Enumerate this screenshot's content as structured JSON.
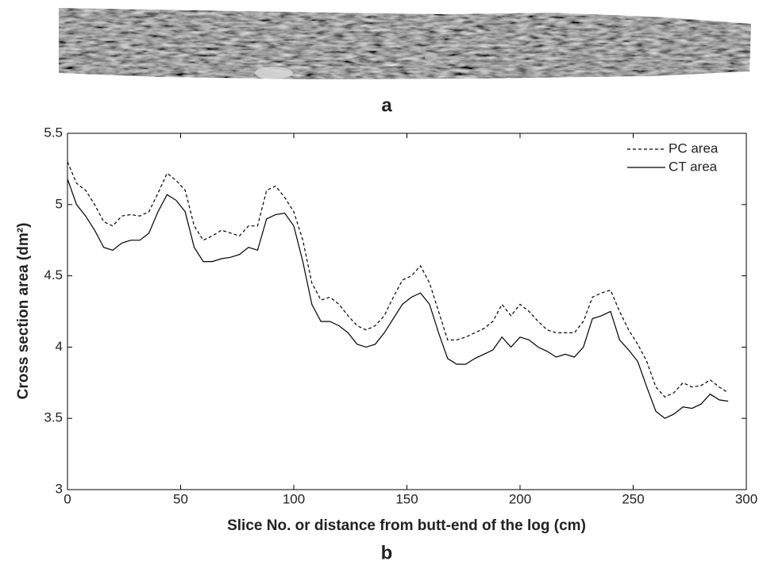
{
  "chart_data": {
    "type": "line",
    "panel_a_label": "a",
    "panel_b_label": "b",
    "xlabel": "Slice No. or distance from butt-end of the log (cm)",
    "ylabel": "Cross section area (dm²)",
    "x": [
      0,
      4,
      8,
      12,
      16,
      20,
      24,
      28,
      32,
      36,
      40,
      44,
      48,
      52,
      56,
      60,
      64,
      68,
      72,
      76,
      80,
      84,
      88,
      92,
      96,
      100,
      104,
      108,
      112,
      116,
      120,
      124,
      128,
      132,
      136,
      140,
      144,
      148,
      152,
      156,
      160,
      164,
      168,
      172,
      176,
      180,
      184,
      188,
      192,
      196,
      200,
      204,
      208,
      212,
      216,
      220,
      224,
      228,
      232,
      236,
      240,
      244,
      248,
      252,
      256,
      260,
      264,
      268,
      272,
      276,
      280,
      284,
      288,
      292
    ],
    "series": [
      {
        "name": "PC area",
        "color": "#000000",
        "dash": "4,3",
        "values": [
          5.3,
          5.15,
          5.1,
          5.0,
          4.88,
          4.85,
          4.92,
          4.93,
          4.92,
          4.95,
          5.08,
          5.22,
          5.17,
          5.1,
          4.85,
          4.75,
          4.78,
          4.82,
          4.8,
          4.78,
          4.85,
          4.85,
          5.1,
          5.13,
          5.05,
          4.95,
          4.75,
          4.45,
          4.33,
          4.35,
          4.3,
          4.22,
          4.15,
          4.12,
          4.15,
          4.22,
          4.35,
          4.47,
          4.5,
          4.57,
          4.45,
          4.25,
          4.05,
          4.05,
          4.07,
          4.1,
          4.13,
          4.18,
          4.3,
          4.22,
          4.3,
          4.25,
          4.18,
          4.12,
          4.1,
          4.1,
          4.1,
          4.18,
          4.35,
          4.38,
          4.4,
          4.25,
          4.12,
          4.02,
          3.9,
          3.72,
          3.65,
          3.68,
          3.75,
          3.72,
          3.73,
          3.77,
          3.72,
          3.68
        ]
      },
      {
        "name": "CT area",
        "color": "#000000",
        "dash": "none",
        "values": [
          5.18,
          5.0,
          4.92,
          4.82,
          4.7,
          4.68,
          4.73,
          4.75,
          4.75,
          4.8,
          4.95,
          5.07,
          5.03,
          4.95,
          4.7,
          4.6,
          4.6,
          4.62,
          4.63,
          4.65,
          4.7,
          4.68,
          4.9,
          4.93,
          4.94,
          4.85,
          4.6,
          4.3,
          4.18,
          4.18,
          4.15,
          4.1,
          4.02,
          4.0,
          4.02,
          4.1,
          4.2,
          4.3,
          4.35,
          4.38,
          4.3,
          4.1,
          3.92,
          3.88,
          3.88,
          3.92,
          3.95,
          3.98,
          4.07,
          4.0,
          4.07,
          4.05,
          4.0,
          3.97,
          3.93,
          3.95,
          3.93,
          4.0,
          4.2,
          4.22,
          4.25,
          4.05,
          3.98,
          3.9,
          3.72,
          3.55,
          3.5,
          3.53,
          3.58,
          3.57,
          3.6,
          3.67,
          3.63,
          3.62
        ]
      }
    ],
    "xlim": [
      0,
      300
    ],
    "xticks": [
      0,
      50,
      100,
      150,
      200,
      250,
      300
    ],
    "ylim": [
      3,
      5.5
    ],
    "yticks": [
      3,
      3.5,
      4,
      4.5,
      5,
      5.5
    ],
    "legend": "upper right",
    "grid": false
  }
}
